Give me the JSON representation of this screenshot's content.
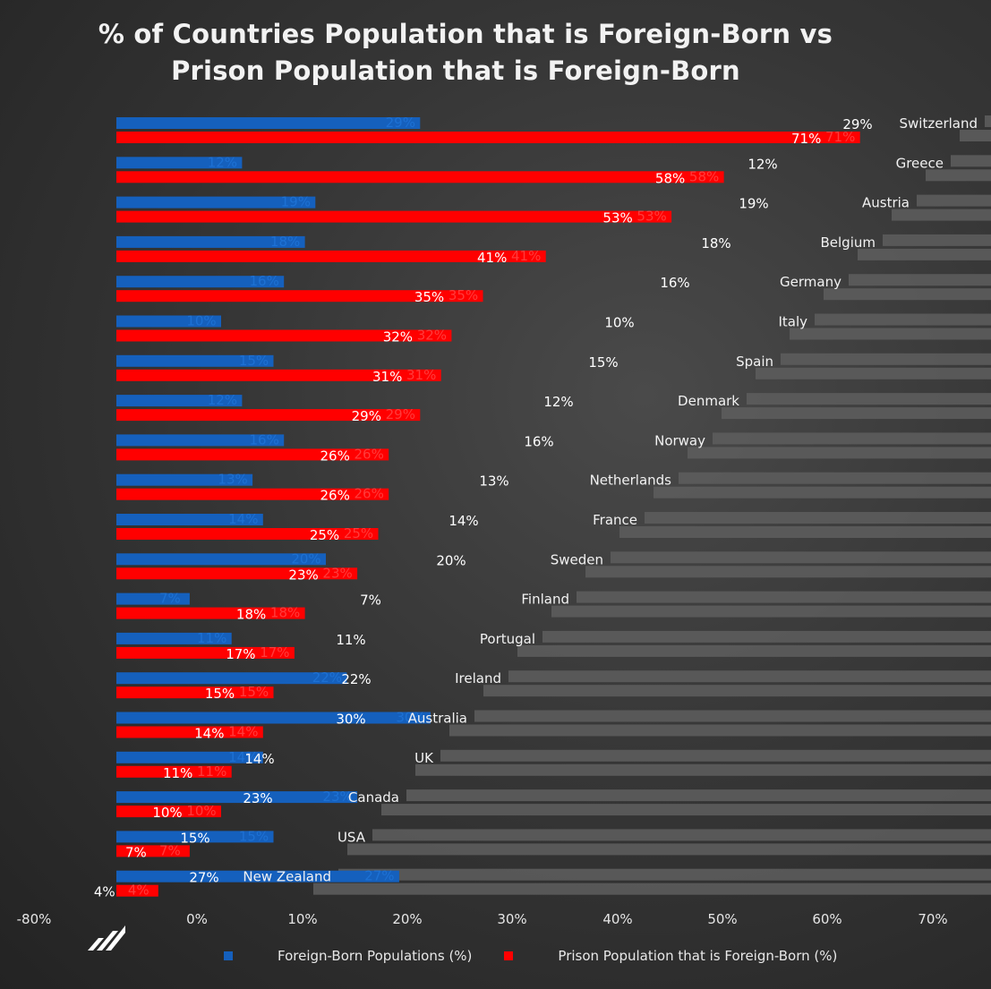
{
  "title": {
    "line1": "% of Countries Population that is Foreign-Born vs",
    "line2": "Prison Population that is Foreign-Born"
  },
  "colors": {
    "foreign_born": "#1560bd",
    "prison": "#ff0000",
    "label_bar": "#5c5c5c"
  },
  "legend": {
    "foreign_born": "Foreign-Born Populations (%)",
    "prison": "Prison Population that is Foreign-Born (%)"
  },
  "chart_data": {
    "type": "bar",
    "orientation": "horizontal",
    "title": "% of Countries Population that is Foreign-Born vs Prison Population that is Foreign-Born",
    "xlabel": "",
    "ylabel": "",
    "xlim": [
      -80,
      70
    ],
    "x_ticks": [
      "-80%",
      "0%",
      "10%",
      "20%",
      "30%",
      "40%",
      "50%",
      "60%",
      "70%"
    ],
    "categories": [
      "Switzerland",
      "Greece",
      "Austria",
      "Belgium",
      "Germany",
      "Italy",
      "Spain",
      "Denmark",
      "Norway",
      "Netherlands",
      "France",
      "Sweden",
      "Finland",
      "Portugal",
      "Ireland",
      "Australia",
      "UK",
      "Canada",
      "USA",
      "New Zealand"
    ],
    "series": [
      {
        "name": "Foreign-Born Populations (%)",
        "values": [
          29,
          12,
          19,
          18,
          16,
          10,
          15,
          12,
          16,
          13,
          14,
          20,
          7,
          11,
          22,
          30,
          14,
          23,
          15,
          27
        ]
      },
      {
        "name": "Prison Population that is Foreign-Born (%)",
        "values": [
          71,
          58,
          53,
          41,
          35,
          32,
          31,
          29,
          26,
          26,
          25,
          23,
          18,
          17,
          15,
          14,
          11,
          10,
          7,
          4
        ]
      }
    ],
    "legend_position": "bottom"
  }
}
